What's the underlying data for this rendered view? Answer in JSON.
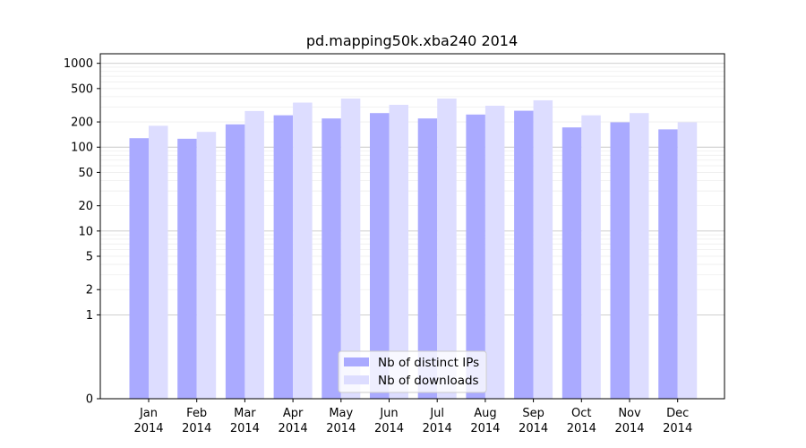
{
  "chart_data": {
    "type": "bar",
    "title": "pd.mapping50k.xba240 2014",
    "xlabel": "",
    "ylabel": "",
    "yscale": "symlog",
    "ylim": [
      0,
      1300
    ],
    "grid": true,
    "legend_position": "bottom-center",
    "categories": [
      [
        "Jan",
        "2014"
      ],
      [
        "Feb",
        "2014"
      ],
      [
        "Mar",
        "2014"
      ],
      [
        "Apr",
        "2014"
      ],
      [
        "May",
        "2014"
      ],
      [
        "Jun",
        "2014"
      ],
      [
        "Jul",
        "2014"
      ],
      [
        "Aug",
        "2014"
      ],
      [
        "Sep",
        "2014"
      ],
      [
        "Oct",
        "2014"
      ],
      [
        "Nov",
        "2014"
      ],
      [
        "Dec",
        "2014"
      ]
    ],
    "yticks": [
      {
        "value": 0,
        "label": "0"
      },
      {
        "value": 1,
        "label": "1"
      },
      {
        "value": 2,
        "label": "2"
      },
      {
        "value": 5,
        "label": "5"
      },
      {
        "value": 10,
        "label": "10"
      },
      {
        "value": 20,
        "label": "20"
      },
      {
        "value": 50,
        "label": "50"
      },
      {
        "value": 100,
        "label": "100"
      },
      {
        "value": 200,
        "label": "200"
      },
      {
        "value": 500,
        "label": "500"
      },
      {
        "value": 1000,
        "label": "1000"
      }
    ],
    "series": [
      {
        "name": "Nb of distinct IPs",
        "color": "#aaaaff",
        "values": [
          128,
          126,
          187,
          240,
          220,
          255,
          220,
          245,
          272,
          172,
          198,
          163
        ]
      },
      {
        "name": "Nb of downloads",
        "color": "#ddddff",
        "values": [
          180,
          152,
          270,
          340,
          380,
          320,
          380,
          312,
          362,
          240,
          255,
          198
        ]
      }
    ]
  }
}
